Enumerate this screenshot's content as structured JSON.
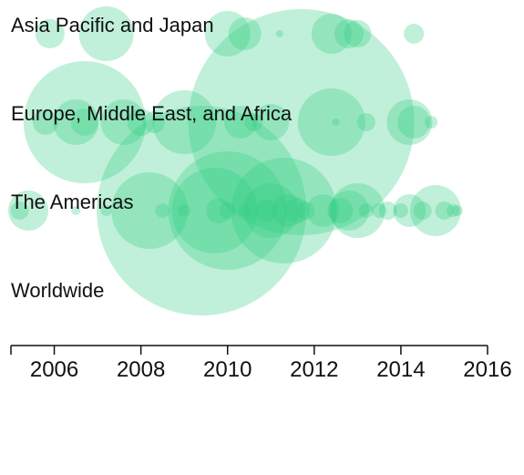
{
  "chart_data": {
    "type": "scatter",
    "encoding": "bubble",
    "title": "",
    "xlabel": "",
    "ylabel": "",
    "xlim": [
      2005,
      2016
    ],
    "x_ticks": [
      "2006",
      "2008",
      "2010",
      "2012",
      "2014",
      "2016"
    ],
    "categories": [
      "Asia Pacific and Japan",
      "Europe, Middle East, and Africa",
      "The Americas",
      "Worldwide"
    ],
    "color": "#2ecc80",
    "bubbles": [
      {
        "region": "Asia Pacific and Japan",
        "x": 2005.9,
        "r": 16
      },
      {
        "region": "Asia Pacific and Japan",
        "x": 2007.2,
        "r": 30
      },
      {
        "region": "Asia Pacific and Japan",
        "x": 2010.0,
        "r": 25
      },
      {
        "region": "Asia Pacific and Japan",
        "x": 2010.4,
        "r": 18
      },
      {
        "region": "Asia Pacific and Japan",
        "x": 2011.2,
        "r": 4
      },
      {
        "region": "Asia Pacific and Japan",
        "x": 2012.4,
        "r": 22
      },
      {
        "region": "Asia Pacific and Japan",
        "x": 2012.8,
        "r": 16
      },
      {
        "region": "Asia Pacific and Japan",
        "x": 2013.0,
        "r": 15
      },
      {
        "region": "Asia Pacific and Japan",
        "x": 2014.3,
        "r": 11
      },
      {
        "region": "Europe, Middle East, and Africa",
        "x": 2005.8,
        "r": 14
      },
      {
        "region": "Europe, Middle East, and Africa",
        "x": 2006.7,
        "r": 67
      },
      {
        "region": "Europe, Middle East, and Africa",
        "x": 2006.5,
        "r": 25
      },
      {
        "region": "Europe, Middle East, and Africa",
        "x": 2006.7,
        "r": 15
      },
      {
        "region": "Europe, Middle East, and Africa",
        "x": 2007.6,
        "r": 25
      },
      {
        "region": "Europe, Middle East, and Africa",
        "x": 2008.0,
        "r": 15
      },
      {
        "region": "Europe, Middle East, and Africa",
        "x": 2008.3,
        "r": 12
      },
      {
        "region": "Europe, Middle East, and Africa",
        "x": 2009.0,
        "r": 35
      },
      {
        "region": "Europe, Middle East, and Africa",
        "x": 2010.3,
        "r": 18
      },
      {
        "region": "Europe, Middle East, and Africa",
        "x": 2010.6,
        "r": 10
      },
      {
        "region": "Europe, Middle East, and Africa",
        "x": 2011.7,
        "r": 124
      },
      {
        "region": "Europe, Middle East, and Africa",
        "x": 2011.0,
        "r": 20
      },
      {
        "region": "Europe, Middle East, and Africa",
        "x": 2012.4,
        "r": 37
      },
      {
        "region": "Europe, Middle East, and Africa",
        "x": 2012.5,
        "r": 4
      },
      {
        "region": "Europe, Middle East, and Africa",
        "x": 2013.2,
        "r": 10
      },
      {
        "region": "Europe, Middle East, and Africa",
        "x": 2014.2,
        "r": 25
      },
      {
        "region": "Europe, Middle East, and Africa",
        "x": 2014.3,
        "r": 18
      },
      {
        "region": "Europe, Middle East, and Africa",
        "x": 2014.7,
        "r": 7
      },
      {
        "region": "The Americas",
        "x": 2005.2,
        "r": 10
      },
      {
        "region": "The Americas",
        "x": 2005.4,
        "r": 22
      },
      {
        "region": "The Americas",
        "x": 2006.5,
        "r": 5
      },
      {
        "region": "The Americas",
        "x": 2007.2,
        "r": 6
      },
      {
        "region": "The Americas",
        "x": 2009.4,
        "r": 115
      },
      {
        "region": "The Americas",
        "x": 2008.2,
        "r": 42
      },
      {
        "region": "The Americas",
        "x": 2008.5,
        "r": 8
      },
      {
        "region": "The Americas",
        "x": 2009.0,
        "r": 7
      },
      {
        "region": "The Americas",
        "x": 2009.7,
        "r": 47
      },
      {
        "region": "The Americas",
        "x": 2010.0,
        "r": 65
      },
      {
        "region": "The Americas",
        "x": 2009.8,
        "r": 14
      },
      {
        "region": "The Americas",
        "x": 2010.0,
        "r": 9
      },
      {
        "region": "The Americas",
        "x": 2010.4,
        "r": 7
      },
      {
        "region": "The Americas",
        "x": 2010.9,
        "r": 12
      },
      {
        "region": "The Americas",
        "x": 2011.0,
        "r": 30
      },
      {
        "region": "The Americas",
        "x": 2011.3,
        "r": 58
      },
      {
        "region": "The Americas",
        "x": 2011.4,
        "r": 18
      },
      {
        "region": "The Americas",
        "x": 2011.6,
        "r": 14
      },
      {
        "region": "The Americas",
        "x": 2011.8,
        "r": 10
      },
      {
        "region": "The Americas",
        "x": 2012.2,
        "r": 18
      },
      {
        "region": "The Americas",
        "x": 2012.6,
        "r": 14
      },
      {
        "region": "The Americas",
        "x": 2012.8,
        "r": 22
      },
      {
        "region": "The Americas",
        "x": 2013.0,
        "r": 30
      },
      {
        "region": "The Americas",
        "x": 2013.2,
        "r": 8
      },
      {
        "region": "The Americas",
        "x": 2013.5,
        "r": 8
      },
      {
        "region": "The Americas",
        "x": 2013.7,
        "r": 10
      },
      {
        "region": "The Americas",
        "x": 2014.0,
        "r": 8
      },
      {
        "region": "The Americas",
        "x": 2014.2,
        "r": 18
      },
      {
        "region": "The Americas",
        "x": 2014.5,
        "r": 10
      },
      {
        "region": "The Americas",
        "x": 2014.8,
        "r": 28
      },
      {
        "region": "The Americas",
        "x": 2015.0,
        "r": 10
      },
      {
        "region": "The Americas",
        "x": 2015.2,
        "r": 7
      },
      {
        "region": "The Americas",
        "x": 2015.3,
        "r": 6
      }
    ]
  }
}
